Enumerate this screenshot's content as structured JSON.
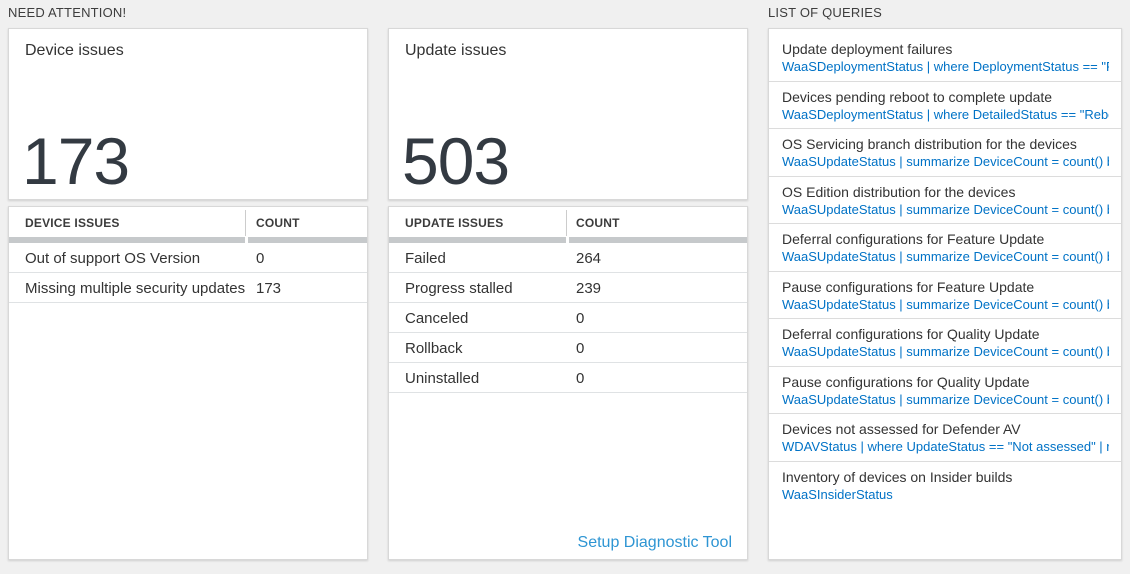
{
  "sections": {
    "need_attention": {
      "label": "NEED ATTENTION!"
    },
    "queries": {
      "label": "LIST OF QUERIES"
    }
  },
  "device_card": {
    "title": "Device issues",
    "count": "173",
    "table": {
      "col1": "DEVICE ISSUES",
      "col2": "COUNT",
      "rows": [
        {
          "label": "Out of support OS Version",
          "value": "0"
        },
        {
          "label": "Missing multiple security updates",
          "value": "173"
        }
      ]
    }
  },
  "update_card": {
    "title": "Update issues",
    "count": "503",
    "table": {
      "col1": "UPDATE ISSUES",
      "col2": "COUNT",
      "rows": [
        {
          "label": "Failed",
          "value": "264"
        },
        {
          "label": "Progress stalled",
          "value": "239"
        },
        {
          "label": "Canceled",
          "value": "0"
        },
        {
          "label": "Rollback",
          "value": "0"
        },
        {
          "label": "Uninstalled",
          "value": "0"
        }
      ]
    },
    "link": "Setup Diagnostic Tool"
  },
  "queries_panel": {
    "items": [
      {
        "title": "Update deployment failures",
        "query": "WaaSDeploymentStatus | where DeploymentStatus == \"Failed\" |..."
      },
      {
        "title": "Devices pending reboot to complete update",
        "query": "WaaSDeploymentStatus | where DetailedStatus == \"Reboot pend..."
      },
      {
        "title": "OS Servicing branch distribution for the devices",
        "query": "WaaSUpdateStatus | summarize DeviceCount = count() by OSSer..."
      },
      {
        "title": "OS Edition distribution for the devices",
        "query": "WaaSUpdateStatus | summarize DeviceCount = count() by OSEdit..."
      },
      {
        "title": "Deferral configurations for Feature Update",
        "query": "WaaSUpdateStatus | summarize DeviceCount = count() by Featur..."
      },
      {
        "title": "Pause configurations for Feature Update",
        "query": "WaaSUpdateStatus | summarize DeviceCount = count() by Featur..."
      },
      {
        "title": "Deferral configurations for Quality Update",
        "query": "WaaSUpdateStatus | summarize DeviceCount = count() by Qualit..."
      },
      {
        "title": "Pause configurations for Quality Update",
        "query": "WaaSUpdateStatus | summarize DeviceCount = count() by Qualit..."
      },
      {
        "title": "Devices not assessed for Defender AV",
        "query": "WDAVStatus | where UpdateStatus == \"Not assessed\" | render ta..."
      },
      {
        "title": "Inventory of devices on Insider builds",
        "query": "WaaSInsiderStatus"
      }
    ]
  },
  "colors": {
    "query_text_blue": "#0072c6",
    "action_link_blue": "#2e95d3",
    "big_number": "#333a42",
    "page_background": "#f0f0f0"
  }
}
